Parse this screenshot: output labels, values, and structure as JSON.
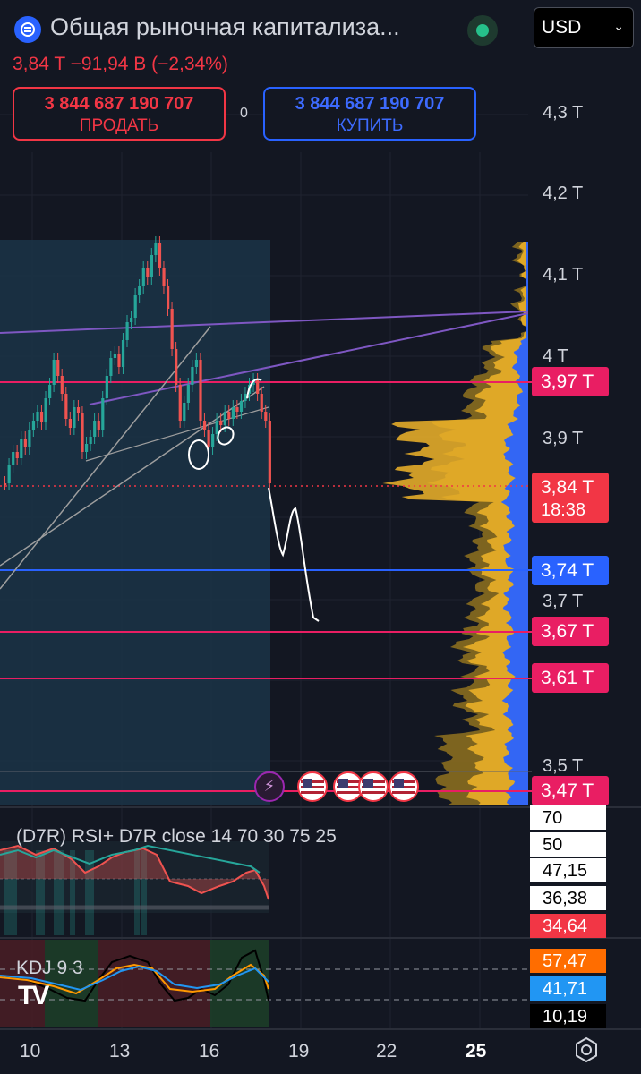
{
  "header": {
    "logo_icon": "coin-icon",
    "title": "Общая рыночная капитализа...",
    "currency": "USD",
    "quote": {
      "price": "3,84 T",
      "change": "−91,94 B",
      "change_pct": "(−2,34%)"
    },
    "sell": {
      "price": "3 844 687 190 707",
      "label": "ПРОДАТЬ"
    },
    "spread": "0",
    "buy": {
      "price": "3 844 687 190 707",
      "label": "КУПИТЬ"
    }
  },
  "price_scale": {
    "labels": [
      "4,3 T",
      "4,2 T",
      "4,1 T",
      "4 T",
      "3,9 T",
      "3,7 T",
      "3,5 T"
    ],
    "badges": [
      {
        "value": "3,97 T",
        "color": "#e91e63"
      },
      {
        "value": "3,84 T",
        "sub": "18:38",
        "color": "#f23645"
      },
      {
        "value": "3,74 T",
        "color": "#2962ff"
      },
      {
        "value": "3,67 T",
        "color": "#e91e63"
      },
      {
        "value": "3,61 T",
        "color": "#e91e63"
      },
      {
        "value": "3,47 T",
        "color": "#e91e63"
      }
    ]
  },
  "rsi": {
    "label": "(D7R) RSI+ D7R close 14 70 30 75 25",
    "levels": [
      "70",
      "50"
    ],
    "values": [
      {
        "value": "47,15",
        "bg": "#ffffff",
        "fg": "#000000"
      },
      {
        "value": "36,38",
        "bg": "#ffffff",
        "fg": "#000000"
      },
      {
        "value": "34,64",
        "bg": "#f23645",
        "fg": "#ffffff"
      }
    ]
  },
  "kdj": {
    "label": "KDJ 9 3",
    "values": [
      {
        "value": "57,47",
        "bg": "#ff6d00",
        "fg": "#ffffff"
      },
      {
        "value": "41,71",
        "bg": "#2196f3",
        "fg": "#ffffff"
      },
      {
        "value": "10,19",
        "bg": "#000000",
        "fg": "#ffffff"
      }
    ]
  },
  "time_axis": {
    "labels": [
      "10",
      "13",
      "16",
      "19",
      "22",
      "25"
    ],
    "highlight": "25"
  },
  "events": [
    "lightning-icon",
    "us-flag-icon",
    "us-flag-icon",
    "us-flag-icon",
    "us-flag-icon"
  ],
  "watermark": "TV",
  "colors": {
    "up": "#26a69a",
    "down": "#ef5350",
    "accent": "#2962ff",
    "level": "#e91e63"
  }
}
